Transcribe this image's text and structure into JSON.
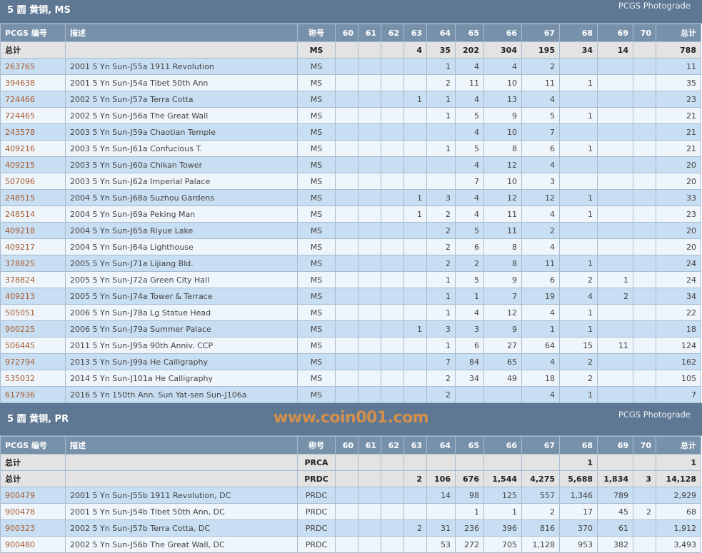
{
  "columns": [
    "PCGS 编号",
    "描述",
    "称号",
    "60",
    "61",
    "62",
    "63",
    "64",
    "65",
    "66",
    "67",
    "68",
    "69",
    "70",
    "总计"
  ],
  "watermark": "www.coin001.com",
  "colors": {
    "title_bar": "#5e7793",
    "header": "#7891ab",
    "total_row": "#e3e3e3",
    "row_odd": "#c8def2",
    "row_even": "#eef5fb",
    "link": "#a85a2e"
  },
  "sections": [
    {
      "title": "5 圆 黄铜, MS",
      "photograde": "PCGS Photograde",
      "totals": [
        [
          "总计",
          "",
          "MS",
          "",
          "",
          "",
          "4",
          "35",
          "202",
          "304",
          "195",
          "34",
          "14",
          "",
          "788"
        ]
      ],
      "rows": [
        [
          "263765",
          "2001 5 Yn Sun-J55a 1911 Revolution",
          "MS",
          "",
          "",
          "",
          "",
          "1",
          "4",
          "4",
          "2",
          "",
          "",
          "",
          "11"
        ],
        [
          "394638",
          "2001 5 Yn Sun-J54a Tibet 50th Ann",
          "MS",
          "",
          "",
          "",
          "",
          "2",
          "11",
          "10",
          "11",
          "1",
          "",
          "",
          "35"
        ],
        [
          "724466",
          "2002 5 Yn Sun-J57a Terra Cotta",
          "MS",
          "",
          "",
          "",
          "1",
          "1",
          "4",
          "13",
          "4",
          "",
          "",
          "",
          "23"
        ],
        [
          "724465",
          "2002 5 Yn Sun-J56a The Great Wall",
          "MS",
          "",
          "",
          "",
          "",
          "1",
          "5",
          "9",
          "5",
          "1",
          "",
          "",
          "21"
        ],
        [
          "243578",
          "2003 5 Yn Sun-J59a Chaotian Temple",
          "MS",
          "",
          "",
          "",
          "",
          "",
          "4",
          "10",
          "7",
          "",
          "",
          "",
          "21"
        ],
        [
          "409216",
          "2003 5 Yn Sun-J61a Confucious T.",
          "MS",
          "",
          "",
          "",
          "",
          "1",
          "5",
          "8",
          "6",
          "1",
          "",
          "",
          "21"
        ],
        [
          "409215",
          "2003 5 Yn Sun-J60a Chikan Tower",
          "MS",
          "",
          "",
          "",
          "",
          "",
          "4",
          "12",
          "4",
          "",
          "",
          "",
          "20"
        ],
        [
          "507096",
          "2003 5 Yn Sun-J62a Imperial Palace",
          "MS",
          "",
          "",
          "",
          "",
          "",
          "7",
          "10",
          "3",
          "",
          "",
          "",
          "20"
        ],
        [
          "248515",
          "2004 5 Yn Sun-J68a Suzhou Gardens",
          "MS",
          "",
          "",
          "",
          "1",
          "3",
          "4",
          "12",
          "12",
          "1",
          "",
          "",
          "33"
        ],
        [
          "248514",
          "2004 5 Yn Sun-J69a Peking Man",
          "MS",
          "",
          "",
          "",
          "1",
          "2",
          "4",
          "11",
          "4",
          "1",
          "",
          "",
          "23"
        ],
        [
          "409218",
          "2004 5 Yn Sun-J65a Riyue Lake",
          "MS",
          "",
          "",
          "",
          "",
          "2",
          "5",
          "11",
          "2",
          "",
          "",
          "",
          "20"
        ],
        [
          "409217",
          "2004 5 Yn Sun-J64a Lighthouse",
          "MS",
          "",
          "",
          "",
          "",
          "2",
          "6",
          "8",
          "4",
          "",
          "",
          "",
          "20"
        ],
        [
          "378825",
          "2005 5 Yn Sun-J71a Lijiang Bld.",
          "MS",
          "",
          "",
          "",
          "",
          "2",
          "2",
          "8",
          "11",
          "1",
          "",
          "",
          "24"
        ],
        [
          "378824",
          "2005 5 Yn Sun-J72a Green City Hall",
          "MS",
          "",
          "",
          "",
          "",
          "1",
          "5",
          "9",
          "6",
          "2",
          "1",
          "",
          "24"
        ],
        [
          "409213",
          "2005 5 Yn Sun-J74a Tower & Terrace",
          "MS",
          "",
          "",
          "",
          "",
          "1",
          "1",
          "7",
          "19",
          "4",
          "2",
          "",
          "34"
        ],
        [
          "505051",
          "2006 5 Yn Sun-J78a Lg Statue Head",
          "MS",
          "",
          "",
          "",
          "",
          "1",
          "4",
          "12",
          "4",
          "1",
          "",
          "",
          "22"
        ],
        [
          "900225",
          "2006 5 Yn Sun-J79a Summer Palace",
          "MS",
          "",
          "",
          "",
          "1",
          "3",
          "3",
          "9",
          "1",
          "1",
          "",
          "",
          "18"
        ],
        [
          "506445",
          "2011 5 Yn Sun-J95a 90th Anniv. CCP",
          "MS",
          "",
          "",
          "",
          "",
          "1",
          "6",
          "27",
          "64",
          "15",
          "11",
          "",
          "124"
        ],
        [
          "972794",
          "2013 5 Yn Sun-J99a He Calligraphy",
          "MS",
          "",
          "",
          "",
          "",
          "7",
          "84",
          "65",
          "4",
          "2",
          "",
          "",
          "162"
        ],
        [
          "535032",
          "2014 5 Yn Sun-J101a He Calligraphy",
          "MS",
          "",
          "",
          "",
          "",
          "2",
          "34",
          "49",
          "18",
          "2",
          "",
          "",
          "105"
        ],
        [
          "617936",
          "2016 5 Yn 150th Ann. Sun Yat-sen Sun-J106a",
          "MS",
          "",
          "",
          "",
          "",
          "2",
          "",
          "",
          "4",
          "1",
          "",
          "",
          "7"
        ]
      ]
    },
    {
      "title": "5 圆 黄铜, PR",
      "photograde": "PCGS Photograde",
      "totals": [
        [
          "总计",
          "",
          "PRCA",
          "",
          "",
          "",
          "",
          "",
          "",
          "",
          "",
          "1",
          "",
          "",
          "1"
        ],
        [
          "总计",
          "",
          "PRDC",
          "",
          "",
          "",
          "2",
          "106",
          "676",
          "1,544",
          "4,275",
          "5,688",
          "1,834",
          "3",
          "14,128"
        ]
      ],
      "rows": [
        [
          "900479",
          "2001 5 Yn Sun-J55b 1911 Revolution, DC",
          "PRDC",
          "",
          "",
          "",
          "",
          "14",
          "98",
          "125",
          "557",
          "1,346",
          "789",
          "",
          "2,929"
        ],
        [
          "900478",
          "2001 5 Yn Sun-J54b Tibet 50th Ann, DC",
          "PRDC",
          "",
          "",
          "",
          "",
          "",
          "1",
          "1",
          "2",
          "17",
          "45",
          "2",
          "68"
        ],
        [
          "900323",
          "2002 5 Yn Sun-J57b Terra Cotta, DC",
          "PRDC",
          "",
          "",
          "",
          "2",
          "31",
          "236",
          "396",
          "816",
          "370",
          "61",
          "",
          "1,912"
        ],
        [
          "900480",
          "2002 5 Yn Sun-J56b The Great Wall, DC",
          "PRDC",
          "",
          "",
          "",
          "",
          "53",
          "272",
          "705",
          "1,128",
          "953",
          "382",
          "",
          "3,493"
        ]
      ]
    }
  ]
}
